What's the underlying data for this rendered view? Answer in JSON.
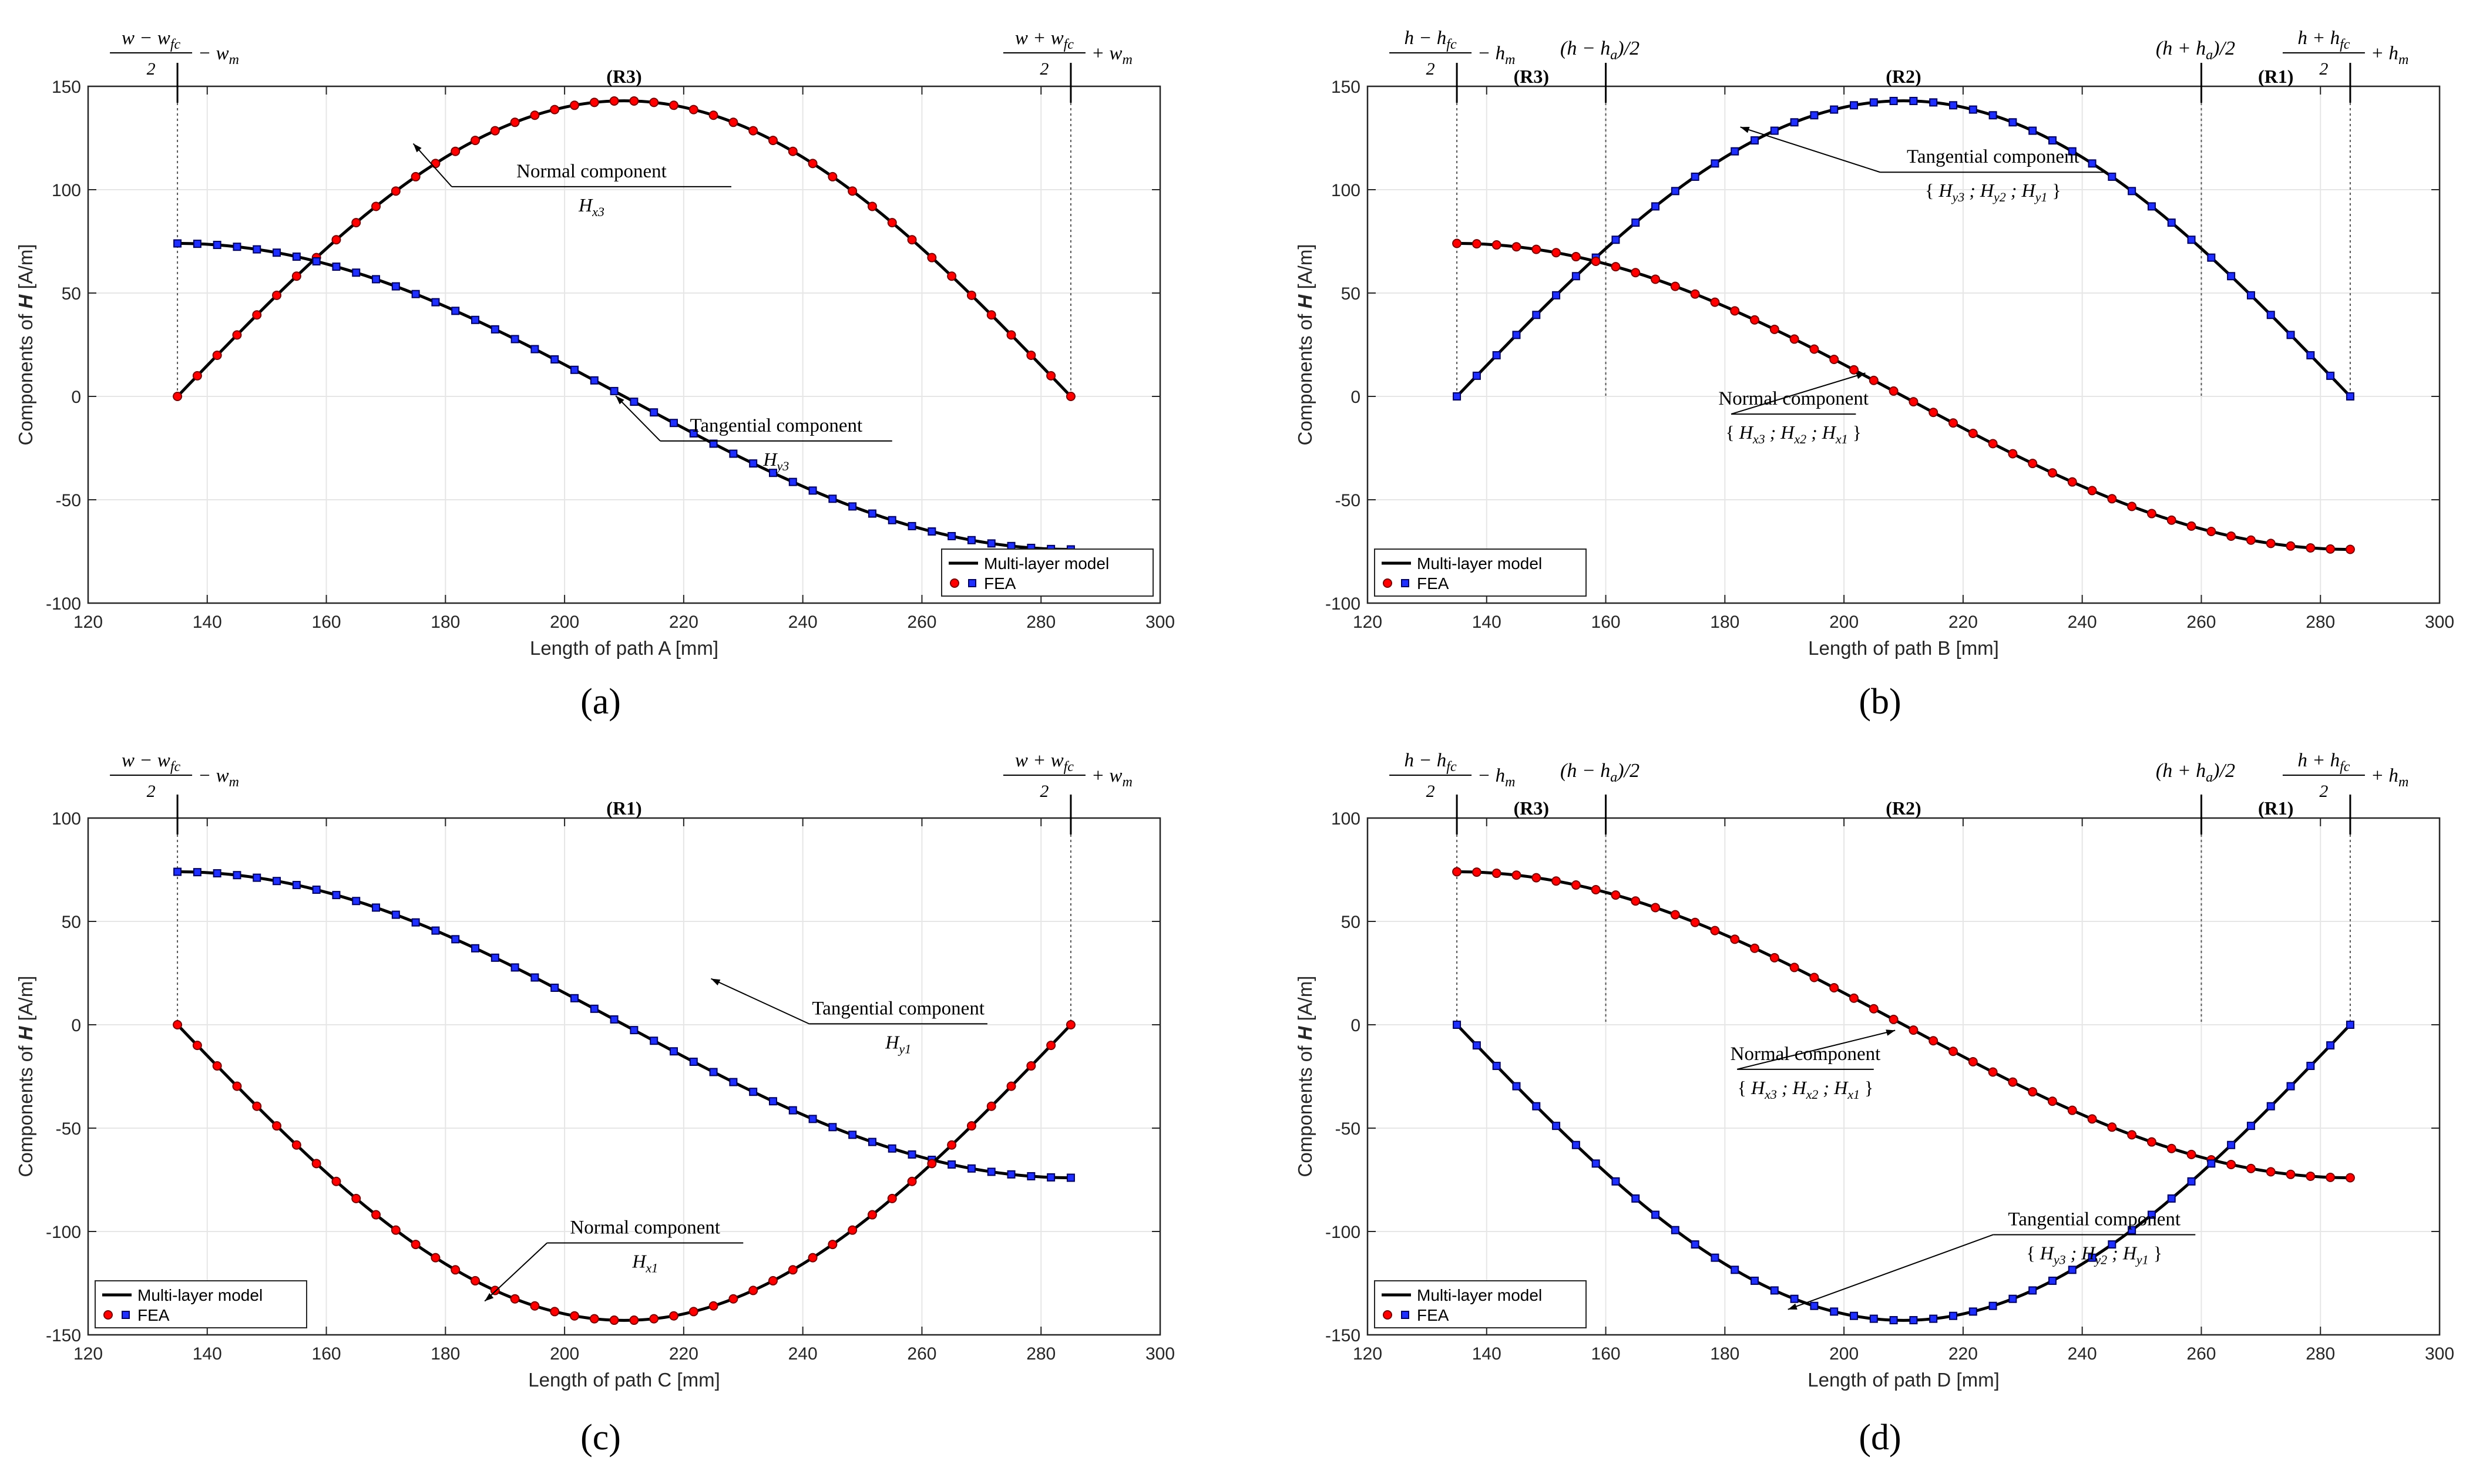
{
  "figure": {
    "background": "#ffffff"
  },
  "colors": {
    "model": "#000000",
    "fea_red_fill": "#ff0000",
    "fea_red_edge": "#7a0000",
    "fea_blue_fill": "#1f2fff",
    "fea_blue_edge": "#000060",
    "grid": "#e6e6e6",
    "axis": "#262626"
  },
  "chart_data": [
    {
      "id": "a",
      "type": "line",
      "panel_label": "(a)",
      "xlabel": "Length of path A [mm]",
      "ylabel_prefix": "Components of ",
      "ylabel_symbol": "H",
      "ylabel_suffix": " [A/m]",
      "xlim": [
        120,
        300
      ],
      "ylim": [
        -100,
        150
      ],
      "xticks": [
        120,
        140,
        160,
        180,
        200,
        220,
        240,
        260,
        280,
        300
      ],
      "yticks": [
        -100,
        -50,
        0,
        50,
        100,
        150
      ],
      "grid": true,
      "legend": {
        "position": "bottom-right",
        "entries": [
          "Multi-layer model",
          "FEA"
        ]
      },
      "path_start": 135,
      "path_end": 285,
      "boundaries": [
        {
          "x": 135,
          "expr": {
            "kind": "w",
            "sign": "-"
          }
        },
        {
          "x": 285,
          "expr": {
            "kind": "w",
            "sign": "+"
          }
        }
      ],
      "regions": [
        {
          "label": "(R3)",
          "x": 210
        }
      ],
      "series": [
        {
          "name": "Normal component",
          "marker": "circle",
          "color": "red",
          "function": "sine",
          "center": 0,
          "amplitude": 143,
          "slope": 0,
          "peak_at": 210,
          "x_start": 135,
          "x_end": 285
        },
        {
          "name": "Tangential component",
          "marker": "square",
          "color": "blue",
          "function": "cosine",
          "center": 0,
          "amplitude": 74,
          "x_start": 135,
          "x_end": 285
        }
      ],
      "annotations": [
        {
          "text": "Normal component",
          "symbol": "H",
          "subscript": "x3",
          "point": [
            174,
            124
          ],
          "text_at": [
            185,
            106
          ],
          "line_to": [
            228,
            100
          ]
        },
        {
          "text": "Tangential component",
          "symbol": "H",
          "subscript": "y3",
          "point": [
            208,
            2
          ],
          "text_at": [
            220,
            -17
          ],
          "line_to": [
            255,
            -23
          ]
        }
      ]
    },
    {
      "id": "b",
      "type": "line",
      "panel_label": "(b)",
      "xlabel": "Length of path B [mm]",
      "ylabel_prefix": "Components of ",
      "ylabel_symbol": "H",
      "ylabel_suffix": " [A/m]",
      "xlim": [
        120,
        300
      ],
      "ylim": [
        -100,
        150
      ],
      "xticks": [
        120,
        140,
        160,
        180,
        200,
        220,
        240,
        260,
        280,
        300
      ],
      "yticks": [
        -100,
        -50,
        0,
        50,
        100,
        150
      ],
      "grid": true,
      "legend": {
        "position": "bottom-left",
        "entries": [
          "Multi-layer model",
          "FEA"
        ]
      },
      "path_start": 135,
      "path_end": 285,
      "boundaries": [
        {
          "x": 135,
          "expr": {
            "kind": "h",
            "sign": "-"
          }
        },
        {
          "x": 160,
          "expr": {
            "kind": "ha",
            "sign": "-"
          }
        },
        {
          "x": 260,
          "expr": {
            "kind": "ha",
            "sign": "+"
          }
        },
        {
          "x": 285,
          "expr": {
            "kind": "h",
            "sign": "+"
          }
        }
      ],
      "regions": [
        {
          "label": "(R3)",
          "x": 147.5
        },
        {
          "label": "(R2)",
          "x": 210
        },
        {
          "label": "(R1)",
          "x": 272.5
        }
      ],
      "series": [
        {
          "name": "Tangential component",
          "marker": "square",
          "color": "blue",
          "function": "sine",
          "center": 0,
          "amplitude": 143,
          "x_start": 135,
          "x_end": 285
        },
        {
          "name": "Normal component",
          "marker": "circle",
          "color": "red",
          "function": "cosine",
          "center": 0,
          "amplitude": 74,
          "x_start": 135,
          "x_end": 285
        }
      ],
      "annotations": [
        {
          "text": "Tangential component",
          "symbol": "H",
          "subscript": "y3;Hy2;Hy1",
          "braces": true,
          "point": [
            182,
            132
          ],
          "text_at": [
            210,
            113
          ],
          "line_to": [
            244,
            107
          ]
        },
        {
          "text": "Normal component",
          "symbol": "H",
          "subscript": "x3;Hx2;Hx1",
          "braces": true,
          "point": [
            203,
            13
          ],
          "text_at": [
            185,
            -4
          ],
          "line_to": [
            202,
            -10
          ]
        }
      ]
    },
    {
      "id": "c",
      "type": "line",
      "panel_label": "(c)",
      "xlabel": "Length of path C [mm]",
      "ylabel_prefix": "Components of ",
      "ylabel_symbol": "H",
      "ylabel_suffix": " [A/m]",
      "xlim": [
        120,
        300
      ],
      "ylim": [
        -150,
        100
      ],
      "xticks": [
        120,
        140,
        160,
        180,
        200,
        220,
        240,
        260,
        280,
        300
      ],
      "yticks": [
        -150,
        -100,
        -50,
        0,
        50,
        100
      ],
      "grid": true,
      "legend": {
        "position": "bottom-left",
        "entries": [
          "Multi-layer model",
          "FEA"
        ]
      },
      "path_start": 135,
      "path_end": 285,
      "boundaries": [
        {
          "x": 135,
          "expr": {
            "kind": "w",
            "sign": "-"
          }
        },
        {
          "x": 285,
          "expr": {
            "kind": "w",
            "sign": "+"
          }
        }
      ],
      "regions": [
        {
          "label": "(R1)",
          "x": 210
        }
      ],
      "series": [
        {
          "name": "Tangential component",
          "marker": "square",
          "color": "blue",
          "function": "cosine",
          "center": 0,
          "amplitude": 74,
          "x_start": 135,
          "x_end": 285
        },
        {
          "name": "Normal component",
          "marker": "circle",
          "color": "red",
          "function": "sine",
          "center": 0,
          "amplitude": -143,
          "x_start": 135,
          "x_end": 285
        }
      ],
      "annotations": [
        {
          "text": "Tangential component",
          "symbol": "H",
          "subscript": "y1",
          "point": [
            224,
            24
          ],
          "text_at": [
            245,
            5
          ],
          "line_to": [
            271,
            0
          ]
        },
        {
          "text": "Normal component",
          "symbol": "H",
          "subscript": "x1",
          "point": [
            186,
            -132
          ],
          "text_at": [
            201,
            -101
          ],
          "line_to": [
            230,
            -112
          ]
        }
      ]
    },
    {
      "id": "d",
      "type": "line",
      "panel_label": "(d)",
      "xlabel": "Length of path D [mm]",
      "ylabel_prefix": "Components of ",
      "ylabel_symbol": "H",
      "ylabel_suffix": " [A/m]",
      "xlim": [
        120,
        300
      ],
      "ylim": [
        -150,
        100
      ],
      "xticks": [
        120,
        140,
        160,
        180,
        200,
        220,
        240,
        260,
        280,
        300
      ],
      "yticks": [
        -150,
        -100,
        -50,
        0,
        50,
        100
      ],
      "grid": true,
      "legend": {
        "position": "bottom-left",
        "entries": [
          "Multi-layer model",
          "FEA"
        ]
      },
      "path_start": 135,
      "path_end": 285,
      "boundaries": [
        {
          "x": 135,
          "expr": {
            "kind": "h",
            "sign": "-"
          }
        },
        {
          "x": 160,
          "expr": {
            "kind": "ha",
            "sign": "-"
          }
        },
        {
          "x": 260,
          "expr": {
            "kind": "ha",
            "sign": "+"
          }
        },
        {
          "x": 285,
          "expr": {
            "kind": "h",
            "sign": "+"
          }
        }
      ],
      "regions": [
        {
          "label": "(R3)",
          "x": 147.5
        },
        {
          "label": "(R2)",
          "x": 210
        },
        {
          "label": "(R1)",
          "x": 272.5
        }
      ],
      "series": [
        {
          "name": "Normal component",
          "marker": "circle",
          "color": "red",
          "function": "cosine",
          "center": 0,
          "amplitude": 74,
          "x_start": 135,
          "x_end": 285
        },
        {
          "name": "Tangential component",
          "marker": "square",
          "color": "blue",
          "function": "sine",
          "center": 0,
          "amplitude": -143,
          "x_start": 135,
          "x_end": 285
        }
      ],
      "annotations": [
        {
          "text": "Normal component",
          "symbol": "H",
          "subscript": "x3;Hx2;Hx1",
          "braces": true,
          "point": [
            208,
            -1
          ],
          "text_at": [
            186,
            -17
          ],
          "line_to": [
            205,
            -24
          ]
        },
        {
          "text": "Tangential component",
          "symbol": "H",
          "subscript": "y3;Hy2;Hy1",
          "braces": true,
          "point": [
            190,
            -136
          ],
          "text_at": [
            229,
            -97
          ],
          "line_to": [
            259,
            -103
          ]
        }
      ]
    }
  ]
}
